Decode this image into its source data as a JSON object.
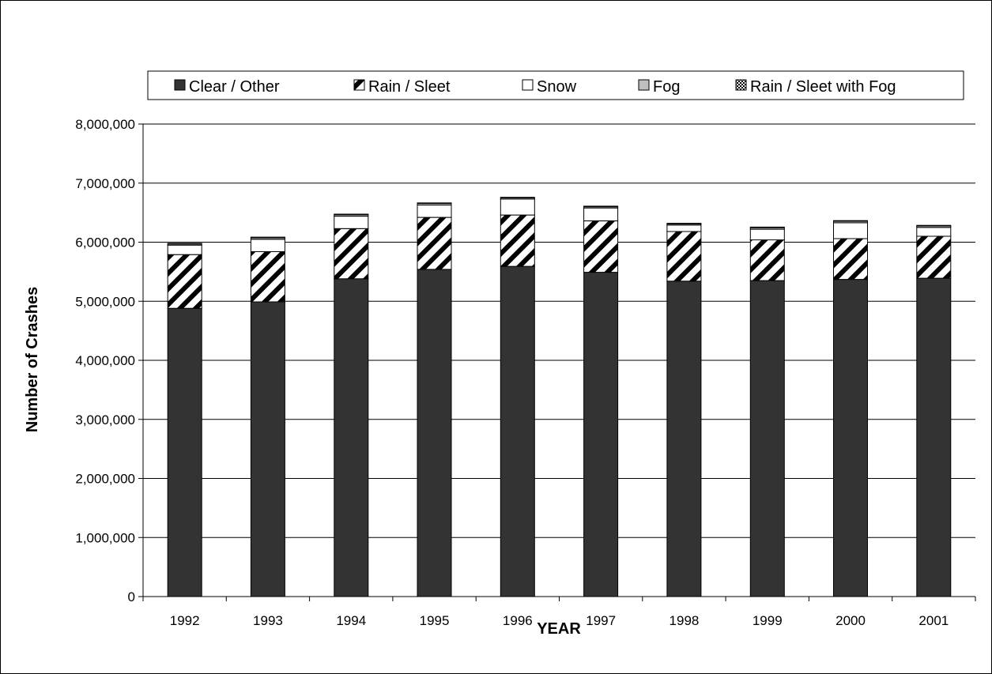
{
  "chart_data": {
    "type": "bar",
    "stacked": true,
    "title": "",
    "xlabel": "YEAR",
    "ylabel": "Number of Crashes",
    "categories": [
      "1992",
      "1993",
      "1994",
      "1995",
      "1996",
      "1997",
      "1998",
      "1999",
      "2000",
      "2001"
    ],
    "ylim": [
      0,
      8000000
    ],
    "yticks": [
      0,
      1000000,
      2000000,
      3000000,
      4000000,
      5000000,
      6000000,
      7000000,
      8000000
    ],
    "ytick_labels": [
      "0",
      "1,000,000",
      "2,000,000",
      "3,000,000",
      "4,000,000",
      "5,000,000",
      "6,000,000",
      "7,000,000",
      "8,000,000"
    ],
    "grid": true,
    "legend_position": "top",
    "series": [
      {
        "name": "Clear / Other",
        "pattern": "solid-dark",
        "color": "#333333",
        "values": [
          4880000,
          4990000,
          5380000,
          5540000,
          5590000,
          5490000,
          5340000,
          5350000,
          5370000,
          5390000
        ]
      },
      {
        "name": "Rain / Sleet",
        "pattern": "diagonal-hatch",
        "color": "#000000",
        "values": [
          910000,
          850000,
          850000,
          880000,
          870000,
          870000,
          840000,
          690000,
          690000,
          710000
        ]
      },
      {
        "name": "Snow",
        "pattern": "white",
        "color": "#ffffff",
        "values": [
          160000,
          210000,
          210000,
          210000,
          270000,
          220000,
          110000,
          180000,
          270000,
          150000
        ]
      },
      {
        "name": "Fog",
        "pattern": "light-gray",
        "color": "#bfbfbf",
        "values": [
          20000,
          25000,
          25000,
          25000,
          20000,
          20000,
          20000,
          25000,
          25000,
          25000
        ]
      },
      {
        "name": "Rain / Sleet with Fog",
        "pattern": "checker",
        "color": "#555555",
        "values": [
          10000,
          10000,
          10000,
          10000,
          10000,
          10000,
          10000,
          10000,
          10000,
          10000
        ]
      }
    ]
  }
}
